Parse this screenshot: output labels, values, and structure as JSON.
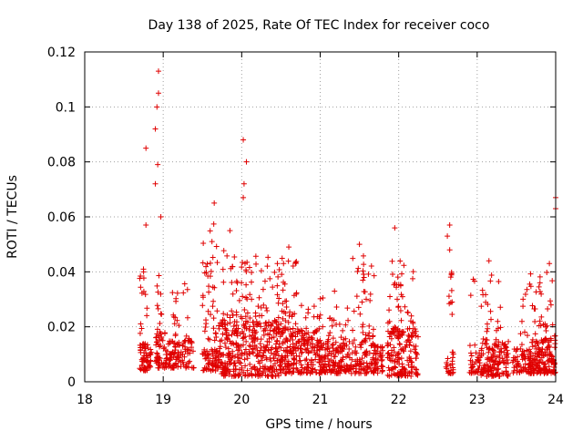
{
  "chart_data": {
    "type": "scatter",
    "title": "Day 138 of 2025, Rate Of TEC Index for receiver coco",
    "xlabel": "GPS time / hours",
    "ylabel": "ROTI / TECUs",
    "xlim": [
      18,
      24
    ],
    "ylim": [
      0,
      0.12
    ],
    "x_ticks": [
      "18",
      "19",
      "20",
      "21",
      "22",
      "23",
      "24"
    ],
    "y_ticks": [
      "0",
      "0.02",
      "0.04",
      "0.06",
      "0.08",
      "0.1",
      "0.12"
    ],
    "x_tick_values": [
      18,
      19,
      20,
      21,
      22,
      23,
      24
    ],
    "y_tick_values": [
      0,
      0.02,
      0.04,
      0.06,
      0.08,
      0.1,
      0.12
    ],
    "grid": true,
    "marker": "+",
    "series_color": "#e00000",
    "notable_points": [
      {
        "x": 18.94,
        "y": 0.113
      },
      {
        "x": 18.94,
        "y": 0.105
      },
      {
        "x": 18.92,
        "y": 0.1
      },
      {
        "x": 18.9,
        "y": 0.092
      },
      {
        "x": 18.78,
        "y": 0.085
      },
      {
        "x": 18.93,
        "y": 0.079
      },
      {
        "x": 18.9,
        "y": 0.072
      },
      {
        "x": 18.97,
        "y": 0.06
      },
      {
        "x": 18.78,
        "y": 0.057
      },
      {
        "x": 18.75,
        "y": 0.04
      },
      {
        "x": 19.65,
        "y": 0.065
      },
      {
        "x": 19.85,
        "y": 0.055
      },
      {
        "x": 20.02,
        "y": 0.088
      },
      {
        "x": 20.06,
        "y": 0.08
      },
      {
        "x": 20.03,
        "y": 0.072
      },
      {
        "x": 20.02,
        "y": 0.067
      },
      {
        "x": 20.6,
        "y": 0.049
      },
      {
        "x": 21.5,
        "y": 0.05
      },
      {
        "x": 21.95,
        "y": 0.056
      },
      {
        "x": 22.65,
        "y": 0.057
      },
      {
        "x": 22.62,
        "y": 0.053
      },
      {
        "x": 22.65,
        "y": 0.048
      },
      {
        "x": 23.15,
        "y": 0.044
      },
      {
        "x": 23.92,
        "y": 0.043
      },
      {
        "x": 24.0,
        "y": 0.067
      },
      {
        "x": 24.0,
        "y": 0.063
      }
    ],
    "dense_segments": [
      {
        "x_start": 18.7,
        "x_end": 18.85,
        "y_min": 0.004,
        "y_max": 0.014,
        "count": 55
      },
      {
        "x_start": 18.9,
        "x_end": 19.05,
        "y_min": 0.005,
        "y_max": 0.018,
        "count": 50
      },
      {
        "x_start": 19.05,
        "x_end": 19.4,
        "y_min": 0.005,
        "y_max": 0.016,
        "count": 90
      },
      {
        "x_start": 19.5,
        "x_end": 19.7,
        "y_min": 0.004,
        "y_max": 0.012,
        "count": 60
      },
      {
        "x_start": 19.7,
        "x_end": 20.5,
        "y_min": 0.002,
        "y_max": 0.022,
        "count": 320
      },
      {
        "x_start": 20.5,
        "x_end": 21.0,
        "y_min": 0.003,
        "y_max": 0.02,
        "count": 200
      },
      {
        "x_start": 21.0,
        "x_end": 21.8,
        "y_min": 0.003,
        "y_max": 0.014,
        "count": 260
      },
      {
        "x_start": 21.85,
        "x_end": 22.25,
        "y_min": 0.002,
        "y_max": 0.02,
        "count": 150
      },
      {
        "x_start": 22.6,
        "x_end": 22.7,
        "y_min": 0.003,
        "y_max": 0.011,
        "count": 25
      },
      {
        "x_start": 22.9,
        "x_end": 23.05,
        "y_min": 0.003,
        "y_max": 0.011,
        "count": 35
      },
      {
        "x_start": 23.05,
        "x_end": 23.4,
        "y_min": 0.002,
        "y_max": 0.015,
        "count": 130
      },
      {
        "x_start": 23.45,
        "x_end": 23.65,
        "y_min": 0.003,
        "y_max": 0.012,
        "count": 50
      },
      {
        "x_start": 23.65,
        "x_end": 24.0,
        "y_min": 0.003,
        "y_max": 0.016,
        "count": 160
      }
    ],
    "spread_segments": [
      {
        "x_start": 18.7,
        "x_end": 18.8,
        "y_min": 0.012,
        "y_max": 0.042,
        "count": 20
      },
      {
        "x_start": 18.92,
        "x_end": 19.0,
        "y_min": 0.015,
        "y_max": 0.045,
        "count": 16
      },
      {
        "x_start": 19.1,
        "x_end": 19.35,
        "y_min": 0.014,
        "y_max": 0.036,
        "count": 20
      },
      {
        "x_start": 19.5,
        "x_end": 19.7,
        "y_min": 0.015,
        "y_max": 0.058,
        "count": 40
      },
      {
        "x_start": 19.75,
        "x_end": 20.5,
        "y_min": 0.018,
        "y_max": 0.048,
        "count": 110
      },
      {
        "x_start": 20.5,
        "x_end": 20.7,
        "y_min": 0.02,
        "y_max": 0.046,
        "count": 30
      },
      {
        "x_start": 20.7,
        "x_end": 21.4,
        "y_min": 0.014,
        "y_max": 0.033,
        "count": 50
      },
      {
        "x_start": 21.4,
        "x_end": 21.7,
        "y_min": 0.014,
        "y_max": 0.046,
        "count": 40
      },
      {
        "x_start": 21.85,
        "x_end": 22.2,
        "y_min": 0.016,
        "y_max": 0.045,
        "count": 45
      },
      {
        "x_start": 22.6,
        "x_end": 22.7,
        "y_min": 0.018,
        "y_max": 0.04,
        "count": 10
      },
      {
        "x_start": 22.9,
        "x_end": 23.3,
        "y_min": 0.013,
        "y_max": 0.04,
        "count": 30
      },
      {
        "x_start": 23.55,
        "x_end": 24.0,
        "y_min": 0.013,
        "y_max": 0.04,
        "count": 45
      }
    ]
  }
}
